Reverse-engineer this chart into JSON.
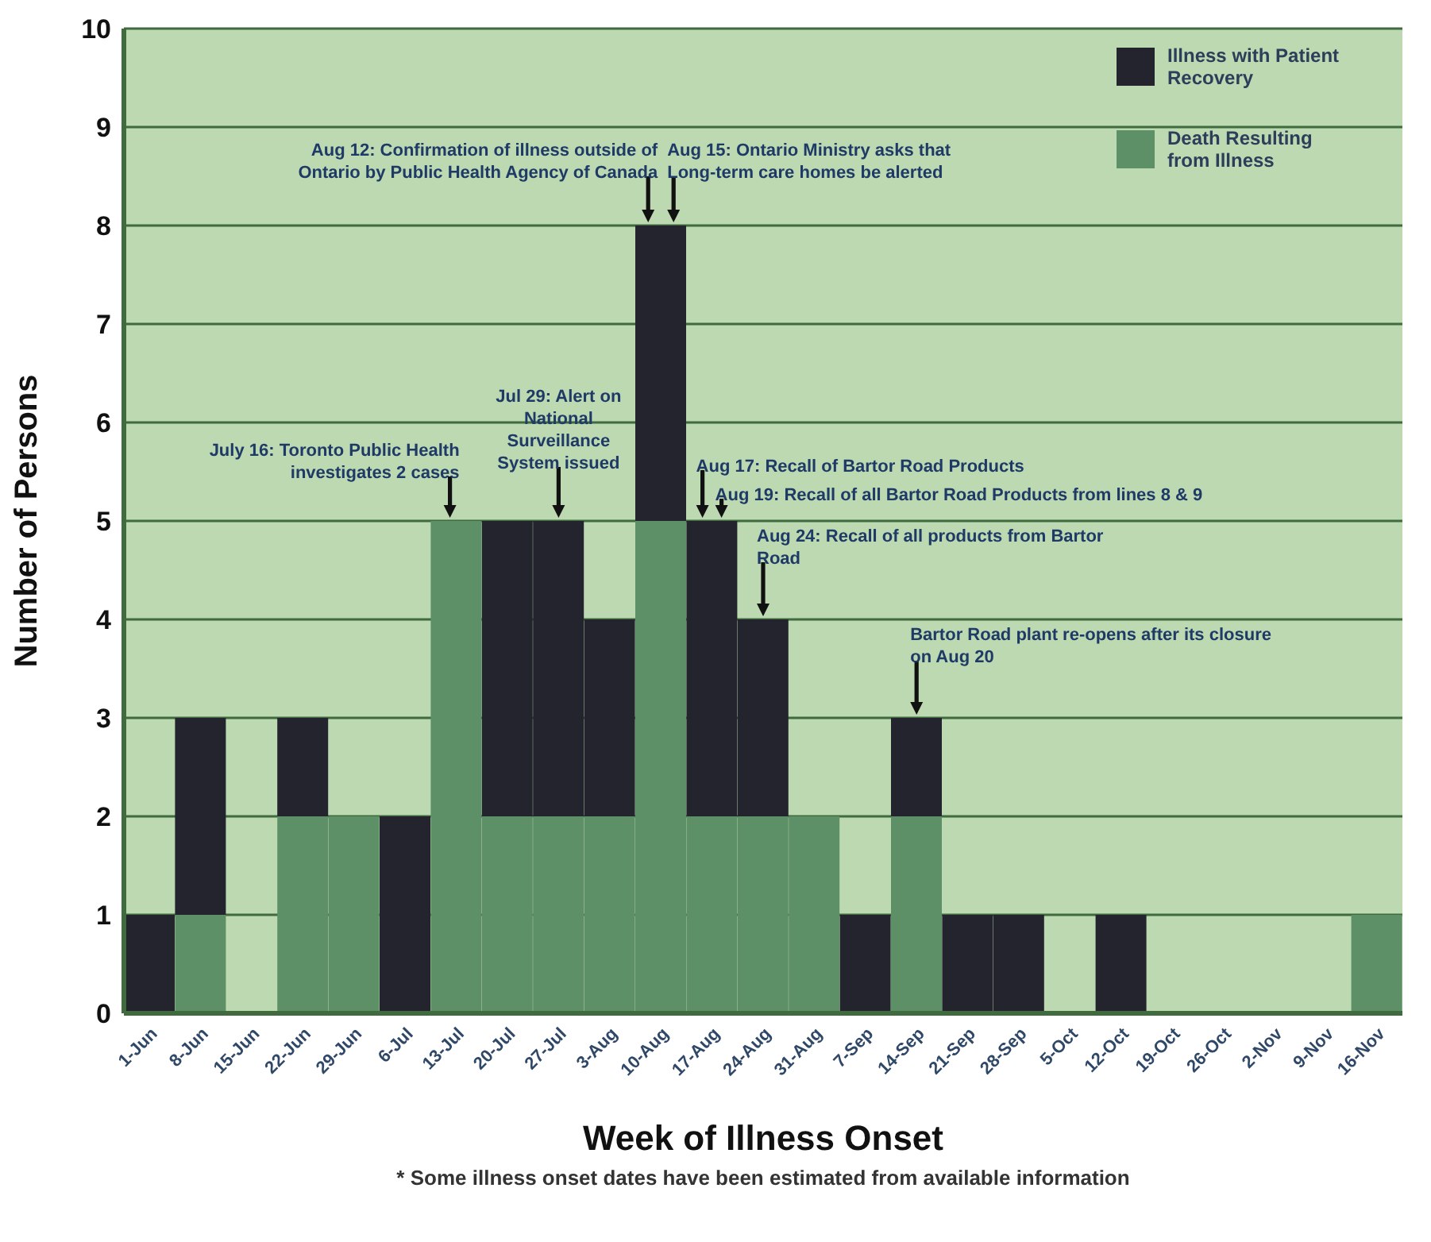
{
  "chart_data": {
    "type": "bar",
    "stacked": true,
    "xlabel": "Week of Illness Onset",
    "ylabel": "Number of Persons",
    "categories": [
      "1-Jun",
      "8-Jun",
      "15-Jun",
      "22-Jun",
      "29-Jun",
      "6-Jul",
      "13-Jul",
      "20-Jul",
      "27-Jul",
      "3-Aug",
      "10-Aug",
      "17-Aug",
      "24-Aug",
      "31-Aug",
      "7-Sep",
      "14-Sep",
      "21-Sep",
      "28-Sep",
      "5-Oct",
      "12-Oct",
      "19-Oct",
      "26-Oct",
      "2-Nov",
      "9-Nov",
      "16-Nov"
    ],
    "series": [
      {
        "name": "Death Resulting from Illness",
        "color": "#5e9068",
        "values": [
          0,
          1,
          0,
          2,
          2,
          0,
          5,
          2,
          2,
          2,
          5,
          2,
          2,
          2,
          0,
          2,
          0,
          0,
          0,
          0,
          0,
          0,
          0,
          0,
          1
        ]
      },
      {
        "name": "Illness with Patient Recovery",
        "color": "#24242e",
        "values": [
          1,
          2,
          0,
          1,
          0,
          2,
          0,
          3,
          3,
          2,
          3,
          3,
          2,
          0,
          1,
          1,
          1,
          1,
          0,
          1,
          0,
          0,
          0,
          0,
          0
        ]
      }
    ],
    "ylim": [
      0,
      10
    ],
    "yticks": [
      0,
      1,
      2,
      3,
      4,
      5,
      6,
      7,
      8,
      9,
      10
    ],
    "grid": "y",
    "legend": "top right",
    "annotations": [
      {
        "text": "Aug 12: Confirmation of illness outside of Ontario by Public Health Agency of Canada",
        "x": "10-Aug",
        "y": 8
      },
      {
        "text": "Aug 15: Ontario Ministry asks that Long-term care homes be alerted",
        "x": "10-Aug",
        "y": 8
      },
      {
        "text": "Jul 29: Alert on National Surveillance System issued",
        "x": "27-Jul",
        "y": 5
      },
      {
        "text": "July 16: Toronto Public Health investigates 2 cases",
        "x": "13-Jul",
        "y": 5
      },
      {
        "text": "Aug 17: Recall of Bartor Road Products",
        "x": "17-Aug",
        "y": 5
      },
      {
        "text": "Aug 19: Recall of all Bartor Road Products from lines 8 & 9",
        "x": "17-Aug",
        "y": 5
      },
      {
        "text": "Aug 24: Recall of all products from Bartor Road",
        "x": "24-Aug",
        "y": 4
      },
      {
        "text": "Bartor Road plant re-opens after its closure on Aug 20",
        "x": "14-Sep",
        "y": 3
      },
      "* Some illness onset dates have been estimated from available information"
    ]
  }
}
